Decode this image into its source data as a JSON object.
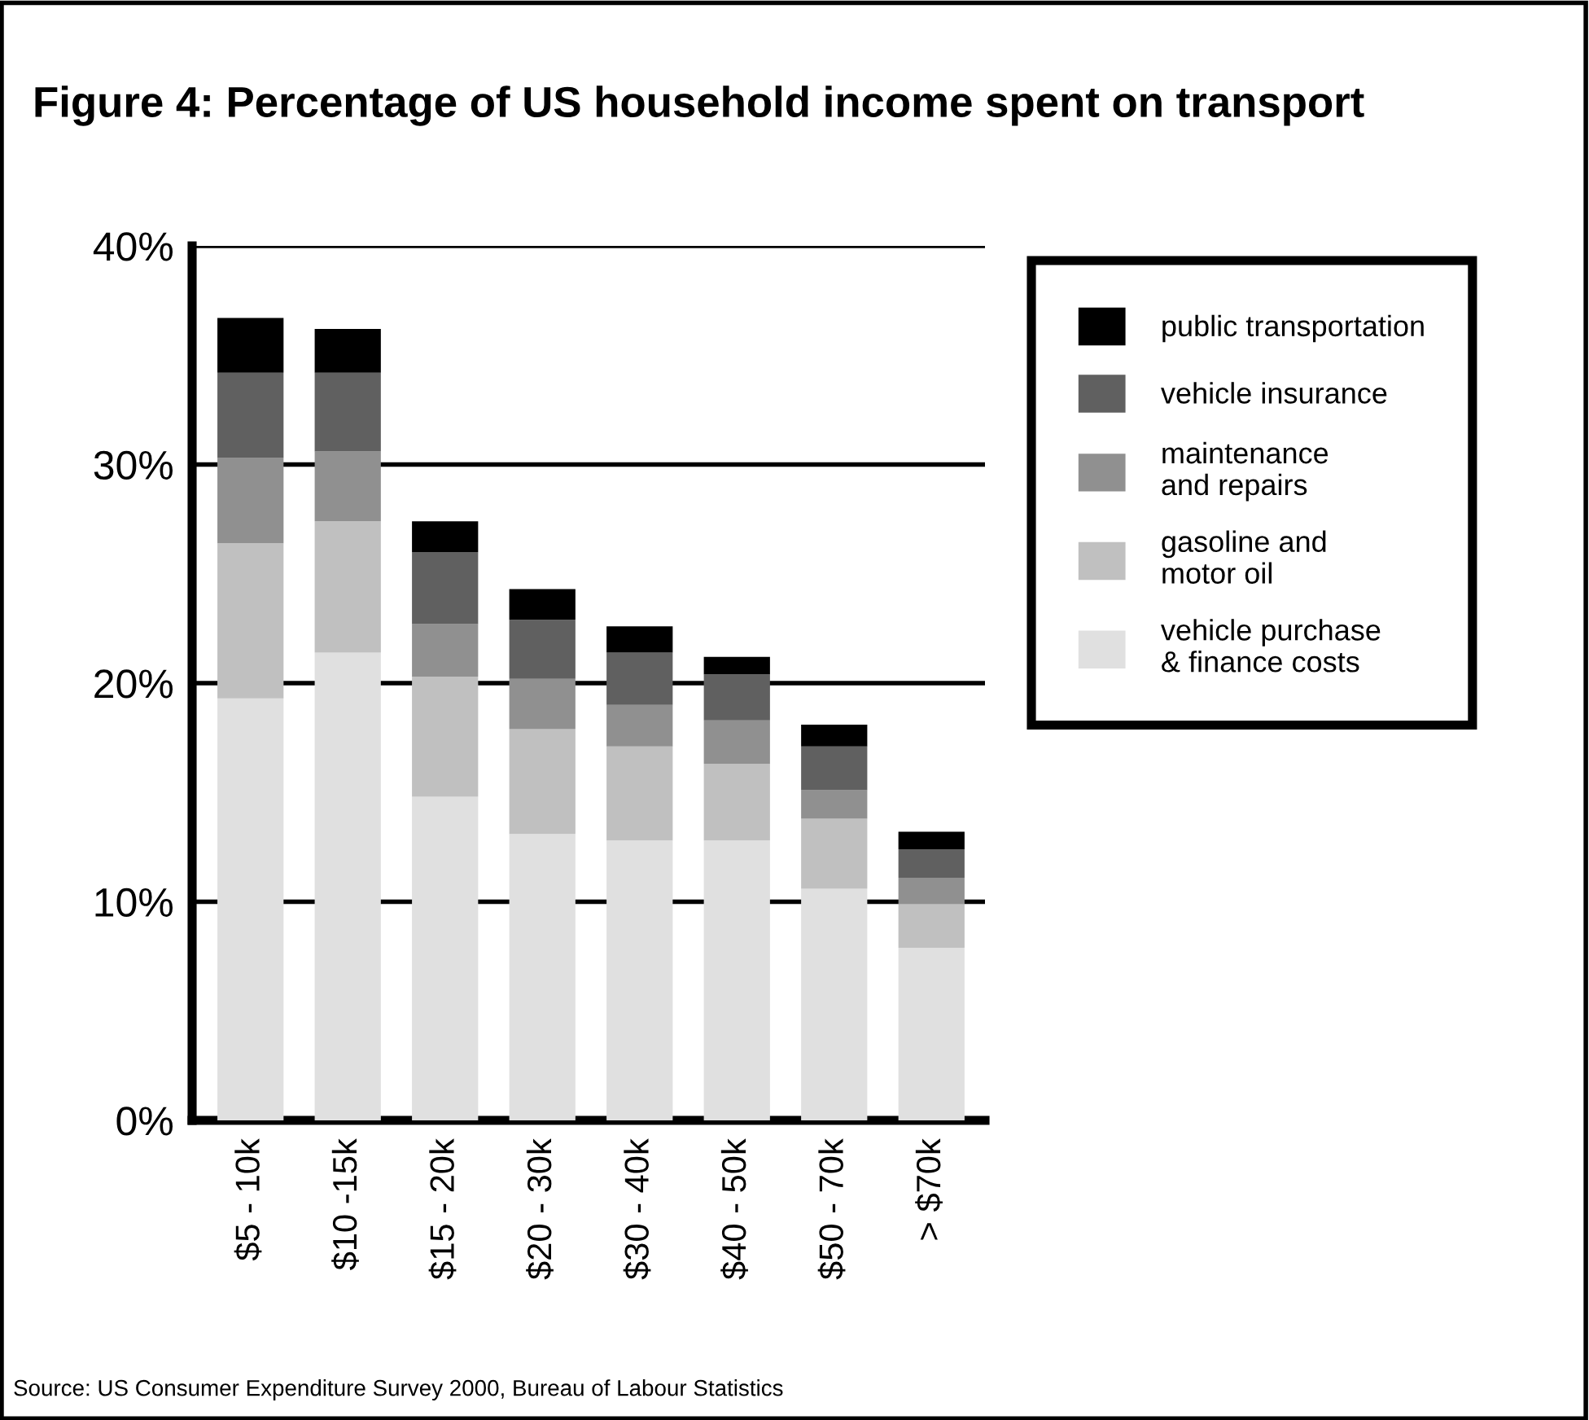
{
  "chart_data": {
    "type": "bar",
    "title": "Figure 4: Percentage of US household income spent on transport",
    "stacked": true,
    "categories": [
      "$5 - 10k",
      "$10 -15k",
      "$15 - 20k",
      "$20 - 30k",
      "$30 - 40k",
      "$40 - 50k",
      "$50 - 70k",
      "> $70k"
    ],
    "series": [
      {
        "name": "vehicle purchase\n& finance costs",
        "color": "#e0e0e0",
        "values": [
          19.3,
          21.4,
          14.8,
          13.1,
          12.8,
          12.8,
          10.6,
          7.9
        ]
      },
      {
        "name": "gasoline and\nmotor oil",
        "color": "#c0c0c0",
        "values": [
          7.1,
          6.0,
          5.5,
          4.8,
          4.3,
          3.5,
          3.2,
          2.0
        ]
      },
      {
        "name": "maintenance\nand repairs",
        "color": "#909090",
        "values": [
          3.9,
          3.2,
          2.4,
          2.3,
          1.9,
          2.0,
          1.3,
          1.2
        ]
      },
      {
        "name": "vehicle insurance",
        "color": "#606060",
        "values": [
          3.9,
          3.6,
          3.3,
          2.7,
          2.4,
          2.1,
          2.0,
          1.3
        ]
      },
      {
        "name": "public transportation",
        "color": "#000000",
        "values": [
          2.5,
          2.0,
          1.4,
          1.4,
          1.2,
          0.8,
          1.0,
          0.8
        ]
      }
    ],
    "ylim": [
      0,
      40
    ],
    "yticks": [
      {
        "value": 0,
        "label": "0%"
      },
      {
        "value": 10,
        "label": "10%"
      },
      {
        "value": 20,
        "label": "20%"
      },
      {
        "value": 30,
        "label": "30%"
      },
      {
        "value": 40,
        "label": "40%"
      }
    ],
    "grid": "y",
    "legend": "right",
    "annotations": [
      "Source: US Consumer Expenditure Survey 2000, Bureau of Labour Statistics"
    ]
  }
}
